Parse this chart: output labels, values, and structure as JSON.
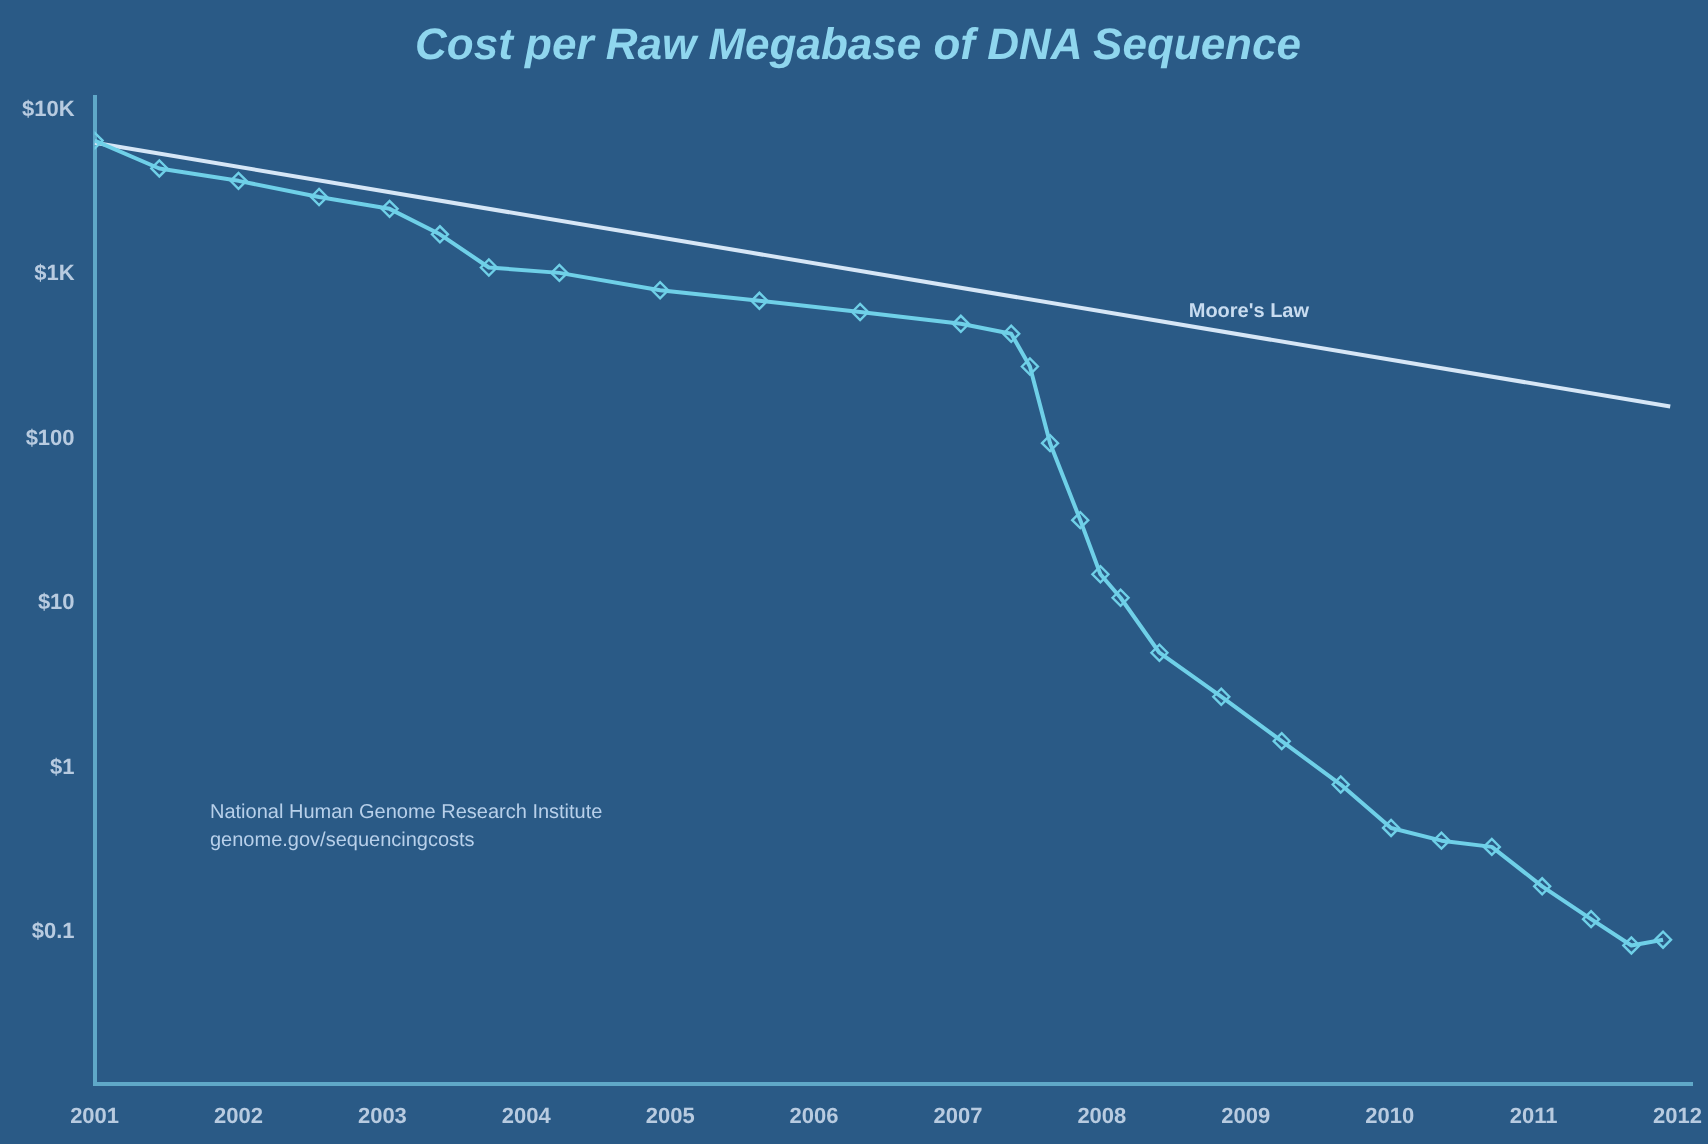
{
  "chart_data": {
    "type": "line",
    "title": "Cost per Raw Megabase of DNA Sequence",
    "log": "y",
    "grid": false,
    "legend": false,
    "xlim": [
      2001,
      2012.1
    ],
    "xticks": [
      2001,
      2002,
      2003,
      2004,
      2005,
      2006,
      2007,
      2008,
      2009,
      2010,
      2011,
      2012
    ],
    "ylim": [
      0.012,
      12000
    ],
    "yticks": [
      {
        "value": 10000,
        "label": "$10K"
      },
      {
        "value": 1000,
        "label": "$1K"
      },
      {
        "value": 100,
        "label": "$100"
      },
      {
        "value": 10,
        "label": "$10"
      },
      {
        "value": 1,
        "label": "$1"
      },
      {
        "value": 0.1,
        "label": "$0.1"
      }
    ],
    "series": [
      {
        "color": "#6fd0e8",
        "marker": "diamond",
        "x": [
          2001.0,
          2001.45,
          2002.0,
          2002.56,
          2003.05,
          2003.4,
          2003.74,
          2004.23,
          2004.93,
          2005.62,
          2006.32,
          2007.02,
          2007.37,
          2007.5,
          2007.64,
          2007.85,
          2007.99,
          2008.13,
          2008.4,
          2008.83,
          2009.25,
          2009.66,
          2010.01,
          2010.36,
          2010.71,
          2011.06,
          2011.4,
          2011.68,
          2011.9
        ],
        "values": [
          6500,
          4400,
          3700,
          2950,
          2500,
          1750,
          1100,
          1020,
          800,
          690,
          590,
          500,
          435,
          275,
          94,
          32,
          15,
          10.8,
          5.0,
          2.7,
          1.45,
          0.79,
          0.43,
          0.36,
          0.33,
          0.19,
          0.12,
          0.083,
          0.09
        ]
      },
      {
        "name": "Moore's Law",
        "color": "#d6e6f6",
        "marker": "none",
        "x": [
          2001.0,
          2011.95
        ],
        "values": [
          6300,
          157
        ]
      }
    ],
    "annotations": [
      "National Human Genome Research Institute",
      "genome.gov/sequencingcosts"
    ]
  }
}
